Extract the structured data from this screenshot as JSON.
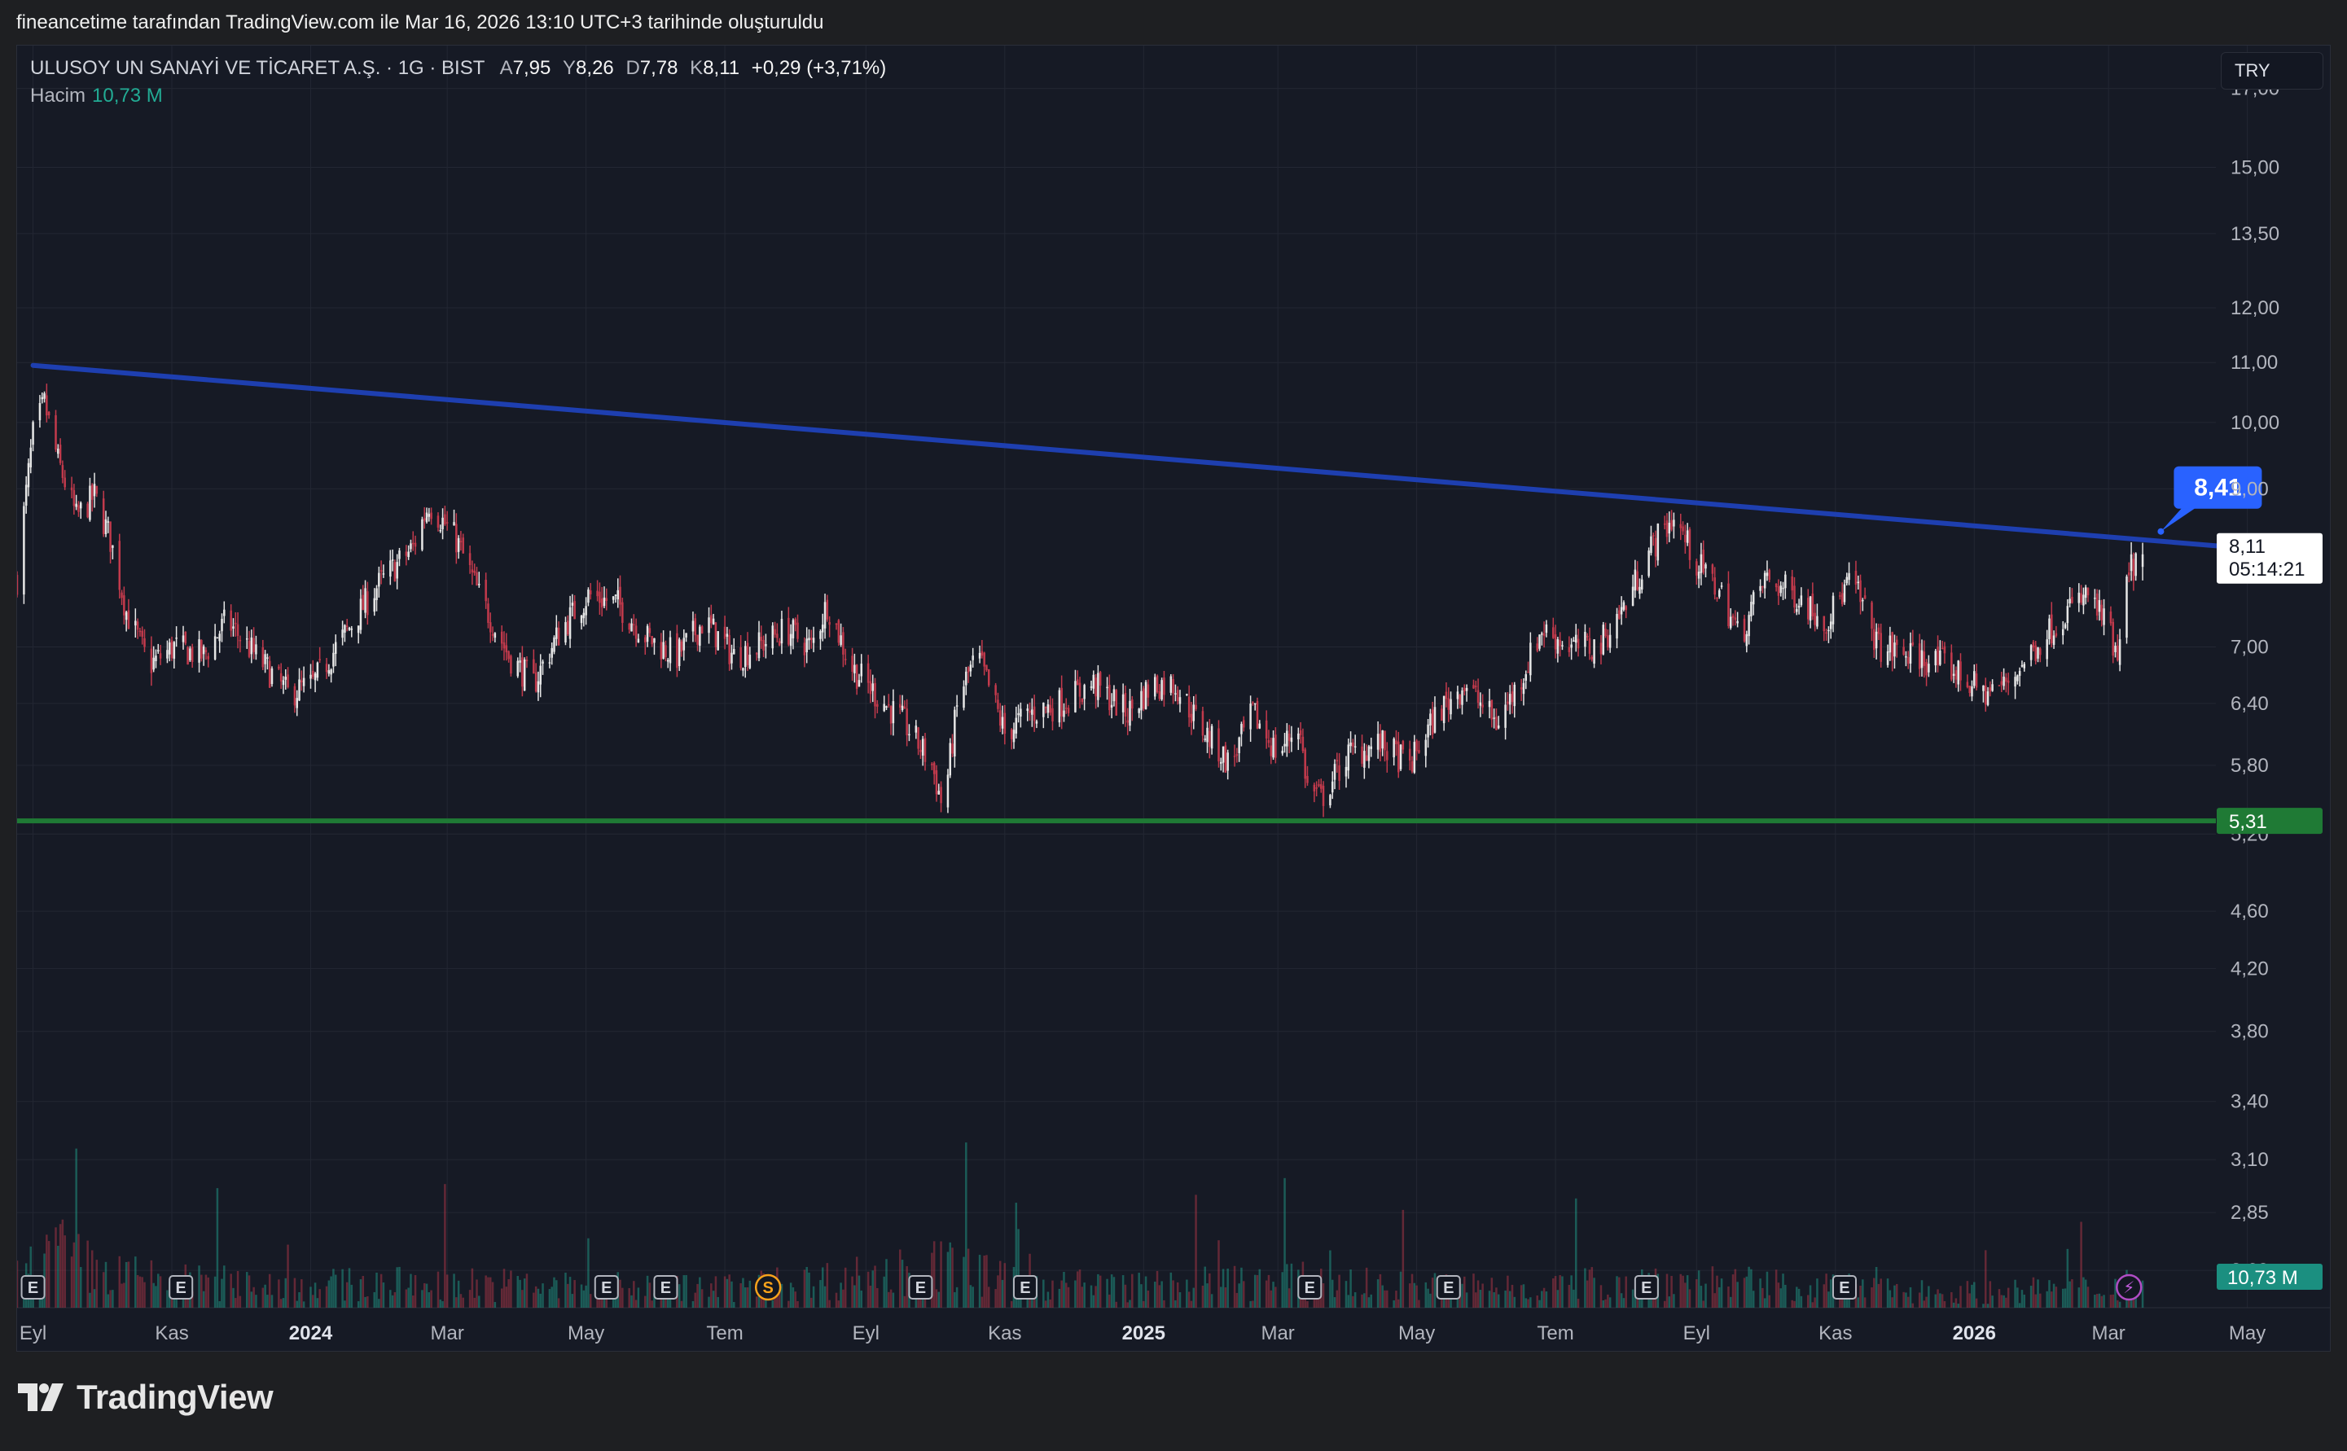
{
  "caption": "fineancetime tarafından TradingView.com ile Mar 16, 2026 13:10 UTC+3 tarihinde oluşturuldu",
  "brand": "TradingView",
  "legend": {
    "symbol": "ULUSOY UN SANAYİ VE TİCARET A.Ş. · 1G · BIST",
    "open_label": "A",
    "open": "7,95",
    "high_label": "Y",
    "high": "8,26",
    "low_label": "D",
    "low": "7,78",
    "close_label": "K",
    "close": "8,11",
    "change": "+0,29 (+3,71%)",
    "volume_label": "Hacim",
    "volume": "10,73 M"
  },
  "currency": "TRY",
  "colors": {
    "background": "#161a25",
    "grid": "#232733",
    "up": "#e6e6e6",
    "down": "#c23a4c",
    "trendline": "#1e3fb0",
    "support": "#1f7a35",
    "callout": "#2962ff",
    "volume_label": "#22ab94"
  },
  "price_labels": {
    "last": "8,11",
    "countdown": "05:14:21",
    "support": "5,31",
    "callout": "8,41",
    "volume": "10,73 M"
  },
  "event_icons": [
    {
      "letter": "E",
      "date": "2023-09-01"
    },
    {
      "letter": "E",
      "date": "2023-11-05"
    },
    {
      "letter": "E",
      "date": "2024-05-10"
    },
    {
      "letter": "E",
      "date": "2024-06-05"
    },
    {
      "letter": "S",
      "date": "2024-07-20"
    },
    {
      "letter": "E",
      "date": "2024-09-25"
    },
    {
      "letter": "E",
      "date": "2024-11-10"
    },
    {
      "letter": "E",
      "date": "2025-03-15"
    },
    {
      "letter": "E",
      "date": "2025-05-15"
    },
    {
      "letter": "E",
      "date": "2025-08-10"
    },
    {
      "letter": "E",
      "date": "2025-11-05"
    },
    {
      "letter": "⚡",
      "date": "2026-03-10"
    }
  ],
  "chart_data": {
    "type": "candlestick",
    "interval": "1G",
    "y_scale": "log",
    "ylim": [
      2.45,
      18.2
    ],
    "xlim": [
      "2023-08-25",
      "2026-06-07"
    ],
    "grid": true,
    "y_ticks": [
      "17,00",
      "15,00",
      "13,50",
      "12,00",
      "11,00",
      "10,00",
      "9,00",
      "7,00",
      "6,40",
      "5,80",
      "5,20",
      "4,60",
      "4,20",
      "3,80",
      "3,40",
      "3,10",
      "2,85",
      "2,60"
    ],
    "x_ticks": [
      {
        "label": "Eyl",
        "date": "2023-09-01",
        "bold": false
      },
      {
        "label": "Kas",
        "date": "2023-11-01",
        "bold": false
      },
      {
        "label": "2024",
        "date": "2024-01-01",
        "bold": true
      },
      {
        "label": "Mar",
        "date": "2024-03-01",
        "bold": false
      },
      {
        "label": "May",
        "date": "2024-05-01",
        "bold": false
      },
      {
        "label": "Tem",
        "date": "2024-07-01",
        "bold": false
      },
      {
        "label": "Eyl",
        "date": "2024-09-01",
        "bold": false
      },
      {
        "label": "Kas",
        "date": "2024-11-01",
        "bold": false
      },
      {
        "label": "2025",
        "date": "2025-01-01",
        "bold": true
      },
      {
        "label": "Mar",
        "date": "2025-03-01",
        "bold": false
      },
      {
        "label": "May",
        "date": "2025-05-01",
        "bold": false
      },
      {
        "label": "Tem",
        "date": "2025-07-01",
        "bold": false
      },
      {
        "label": "Eyl",
        "date": "2025-09-01",
        "bold": false
      },
      {
        "label": "Kas",
        "date": "2025-11-01",
        "bold": false
      },
      {
        "label": "2026",
        "date": "2026-01-01",
        "bold": true
      },
      {
        "label": "Mar",
        "date": "2026-03-01",
        "bold": false
      },
      {
        "label": "May",
        "date": "2026-05-01",
        "bold": false
      }
    ],
    "close_path": [
      [
        "2023-08-25",
        7.8
      ],
      [
        "2023-09-01",
        9.8
      ],
      [
        "2023-09-06",
        10.3
      ],
      [
        "2023-09-12",
        9.4
      ],
      [
        "2023-09-20",
        8.6
      ],
      [
        "2023-09-28",
        8.9
      ],
      [
        "2023-10-05",
        8.3
      ],
      [
        "2023-10-12",
        7.4
      ],
      [
        "2023-10-22",
        6.8
      ],
      [
        "2023-11-02",
        7.0
      ],
      [
        "2023-11-15",
        6.9
      ],
      [
        "2023-11-25",
        7.3
      ],
      [
        "2023-12-08",
        6.9
      ],
      [
        "2023-12-22",
        6.5
      ],
      [
        "2024-01-02",
        6.6
      ],
      [
        "2024-01-15",
        7.1
      ],
      [
        "2024-01-30",
        7.7
      ],
      [
        "2024-02-15",
        8.2
      ],
      [
        "2024-02-22",
        8.8
      ],
      [
        "2024-03-05",
        8.3
      ],
      [
        "2024-03-15",
        7.6
      ],
      [
        "2024-03-28",
        6.9
      ],
      [
        "2024-04-08",
        6.6
      ],
      [
        "2024-04-20",
        7.2
      ],
      [
        "2024-05-02",
        7.6
      ],
      [
        "2024-05-15",
        7.5
      ],
      [
        "2024-05-28",
        7.1
      ],
      [
        "2024-06-10",
        6.9
      ],
      [
        "2024-06-22",
        7.3
      ],
      [
        "2024-07-05",
        6.9
      ],
      [
        "2024-07-15",
        7.0
      ],
      [
        "2024-07-28",
        7.2
      ],
      [
        "2024-08-08",
        7.0
      ],
      [
        "2024-08-15",
        7.5
      ],
      [
        "2024-08-25",
        6.8
      ],
      [
        "2024-09-05",
        6.5
      ],
      [
        "2024-09-18",
        6.2
      ],
      [
        "2024-09-30",
        5.8
      ],
      [
        "2024-10-05",
        5.4
      ],
      [
        "2024-10-12",
        6.5
      ],
      [
        "2024-10-20",
        6.9
      ],
      [
        "2024-11-01",
        6.1
      ],
      [
        "2024-11-12",
        6.3
      ],
      [
        "2024-11-25",
        6.4
      ],
      [
        "2024-12-10",
        6.6
      ],
      [
        "2024-12-25",
        6.3
      ],
      [
        "2025-01-05",
        6.6
      ],
      [
        "2025-01-15",
        6.6
      ],
      [
        "2025-01-25",
        6.2
      ],
      [
        "2025-02-08",
        5.8
      ],
      [
        "2025-02-18",
        6.3
      ],
      [
        "2025-03-01",
        5.9
      ],
      [
        "2025-03-10",
        6.2
      ],
      [
        "2025-03-14",
        5.6
      ],
      [
        "2025-03-20",
        5.5
      ],
      [
        "2025-04-01",
        5.9
      ],
      [
        "2025-04-15",
        6.0
      ],
      [
        "2025-04-28",
        5.8
      ],
      [
        "2025-05-10",
        6.3
      ],
      [
        "2025-05-22",
        6.6
      ],
      [
        "2025-06-05",
        6.2
      ],
      [
        "2025-06-15",
        6.6
      ],
      [
        "2025-06-25",
        7.2
      ],
      [
        "2025-07-08",
        7.0
      ],
      [
        "2025-07-20",
        7.0
      ],
      [
        "2025-08-01",
        7.5
      ],
      [
        "2025-08-12",
        8.2
      ],
      [
        "2025-08-22",
        8.6
      ],
      [
        "2025-09-01",
        8.0
      ],
      [
        "2025-09-12",
        7.6
      ],
      [
        "2025-09-20",
        7.1
      ],
      [
        "2025-10-01",
        7.8
      ],
      [
        "2025-10-15",
        7.6
      ],
      [
        "2025-10-28",
        7.3
      ],
      [
        "2025-11-08",
        7.8
      ],
      [
        "2025-11-20",
        7.0
      ],
      [
        "2025-12-05",
        6.9
      ],
      [
        "2025-12-20",
        6.8
      ],
      [
        "2026-01-05",
        6.5
      ],
      [
        "2026-01-15",
        6.6
      ],
      [
        "2026-01-28",
        7.0
      ],
      [
        "2026-02-10",
        7.4
      ],
      [
        "2026-02-20",
        7.6
      ],
      [
        "2026-03-01",
        7.2
      ],
      [
        "2026-03-05",
        6.8
      ],
      [
        "2026-03-10",
        7.9
      ],
      [
        "2026-03-16",
        8.11
      ]
    ],
    "last_candle": {
      "date": "2026-03-16",
      "open": 7.95,
      "high": 8.26,
      "low": 7.78,
      "close": 8.11,
      "change": 0.29,
      "change_pct": 3.71
    },
    "volume_path": [
      [
        "2023-08-25",
        3.3
      ],
      [
        "2023-09-10",
        6.5
      ],
      [
        "2023-10-01",
        4.0
      ],
      [
        "2023-11-01",
        3.0
      ],
      [
        "2024-01-01",
        2.6
      ],
      [
        "2024-03-01",
        2.9
      ],
      [
        "2024-05-01",
        2.4
      ],
      [
        "2024-07-01",
        2.3
      ],
      [
        "2024-08-15",
        3.2
      ],
      [
        "2024-10-10",
        4.8
      ],
      [
        "2024-11-01",
        3.0
      ],
      [
        "2025-01-01",
        2.4
      ],
      [
        "2025-03-01",
        3.2
      ],
      [
        "2025-05-01",
        2.4
      ],
      [
        "2025-07-01",
        2.5
      ],
      [
        "2025-08-20",
        3.3
      ],
      [
        "2025-10-01",
        2.6
      ],
      [
        "2026-01-01",
        1.8
      ],
      [
        "2026-03-12",
        2.4
      ]
    ],
    "volume_unit": "M",
    "volume_pane_max": 40,
    "lines": [
      {
        "name": "Düşen trend",
        "kind": "trendline",
        "from": [
          "2023-09-01",
          10.95
        ],
        "to": [
          "2026-05-12",
          8.16
        ]
      },
      {
        "name": "Destek",
        "kind": "horizontal",
        "value": 5.31
      }
    ],
    "callout": {
      "date": "2026-03-24",
      "value": 8.41,
      "text": "8,41"
    }
  }
}
